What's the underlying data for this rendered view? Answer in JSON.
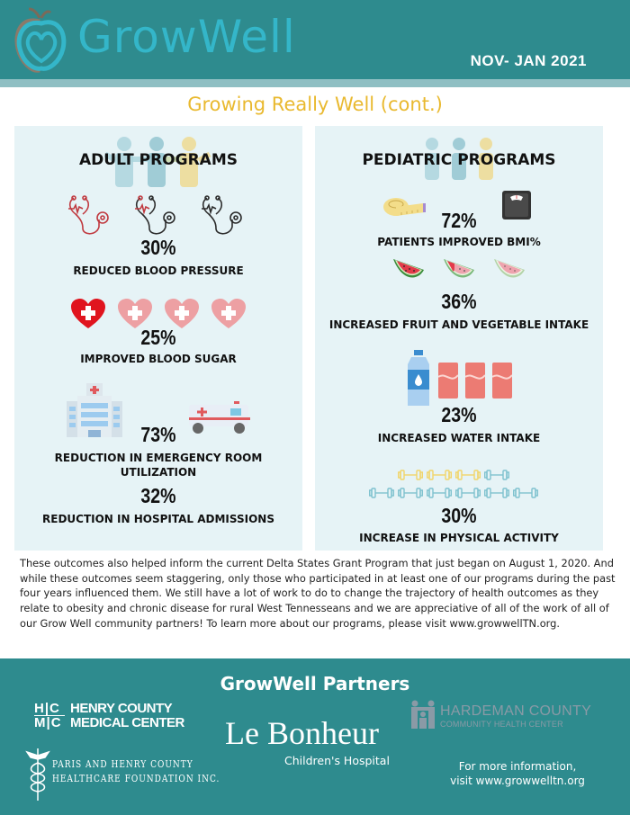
{
  "header": {
    "logo_text": "GrowWell",
    "date": "NOV- JAN 2021"
  },
  "subtitle": "Growing Really Well (cont.)",
  "adult": {
    "title": "ADULT PROGRAMS",
    "stats": [
      {
        "value": "30%",
        "label": "REDUCED BLOOD PRESSURE",
        "icon": "stethoscope-icon"
      },
      {
        "value": "25%",
        "label": "IMPROVED BLOOD SUGAR",
        "icon": "heart-cross-icon"
      },
      {
        "value": "73%",
        "label": "REDUCTION IN EMERGENCY ROOM UTILIZATION",
        "icon": "hospital-ambulance-icon"
      },
      {
        "value": "32%",
        "label": "REDUCTION IN HOSPITAL ADMISSIONS"
      }
    ]
  },
  "pediatric": {
    "title": "PEDIATRIC PROGRAMS",
    "stats": [
      {
        "value": "72%",
        "label": "PATIENTS IMPROVED BMI%",
        "icon": "tape-scale-icon"
      },
      {
        "value": "36%",
        "label": "INCREASED FRUIT AND VEGETABLE INTAKE",
        "icon": "watermelon-icon"
      },
      {
        "value": "23%",
        "label": "INCREASED WATER INTAKE",
        "icon": "water-soda-icon"
      },
      {
        "value": "30%",
        "label": "INCREASE IN PHYSICAL ACTIVITY",
        "icon": "dumbbell-icon"
      }
    ]
  },
  "body_text": "These outcomes also helped inform the current Delta States Grant Program that just began on August 1, 2020. And while these outcomes seem staggering, only those who participated in at least one of our programs during the past four years influenced them. We still have a lot of work to do to change the trajectory of health outcomes as they relate to obesity and chronic disease for rural West Tennesseans and we are appreciative of all of the work of all of our Grow Well community partners! To learn more about our programs, please visit www.growwellTN.org.",
  "footer": {
    "title": "GrowWell Partners",
    "hcmc_mark_top": "H|C",
    "hcmc_mark_bottom": "M|C",
    "hcmc_line1": "HENRY COUNTY",
    "hcmc_line2": "MEDICAL CENTER",
    "phcf_line1": "PARIS AND HENRY COUNTY",
    "phcf_line2": "HEALTHCARE FOUNDATION INC.",
    "lebonheur_name": "Le Bonheur",
    "lebonheur_sub": "Children's Hospital",
    "hardeman_line1": "HARDEMAN COUNTY",
    "hardeman_line2": "COMMUNITY HEALTH CENTER",
    "more_info_line1": "For more information,",
    "more_info_line2": "visit www.growwelltn.org"
  },
  "colors": {
    "teal": "#2e8b8e",
    "accent_yellow": "#e9b92f",
    "panel_bg": "#e6f3f6",
    "logo_blue": "#34b6c9"
  }
}
